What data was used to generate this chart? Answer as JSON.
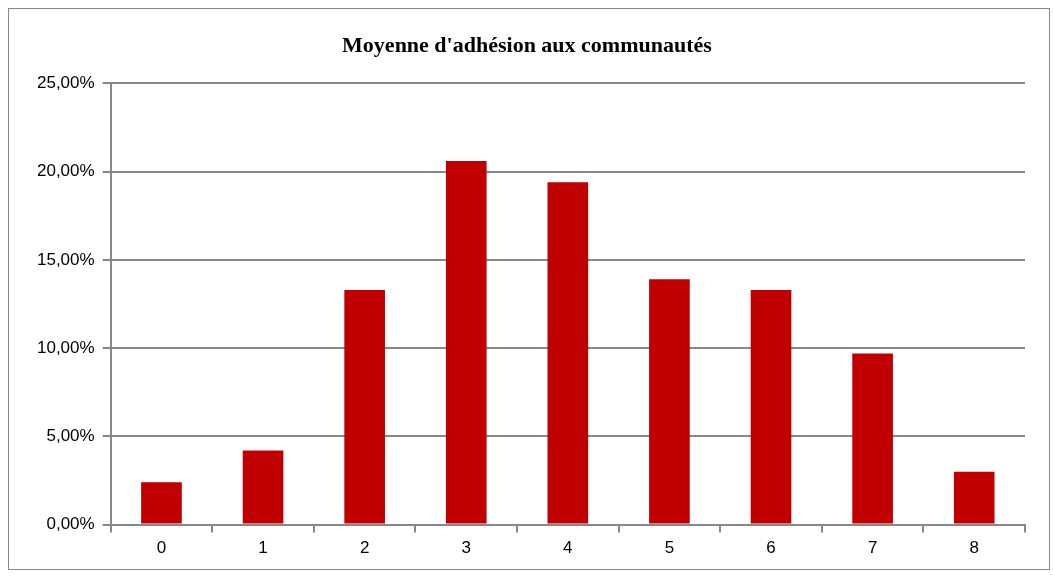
{
  "chart_data": {
    "type": "bar",
    "title": "Moyenne d'adhésion aux communautés",
    "categories": [
      "0",
      "1",
      "2",
      "3",
      "4",
      "5",
      "6",
      "7",
      "8"
    ],
    "values": [
      2.4,
      4.2,
      13.3,
      20.6,
      19.4,
      13.9,
      13.3,
      9.7,
      3.0
    ],
    "color": "#c00000",
    "ylim": [
      0,
      25
    ],
    "yticks": [
      {
        "value": 0,
        "label": "0,00%"
      },
      {
        "value": 5,
        "label": "5,00%"
      },
      {
        "value": 10,
        "label": "10,00%"
      },
      {
        "value": 15,
        "label": "15,00%"
      },
      {
        "value": 20,
        "label": "20,00%"
      },
      {
        "value": 25,
        "label": "25,00%"
      }
    ],
    "grid": "y",
    "legend": false
  }
}
